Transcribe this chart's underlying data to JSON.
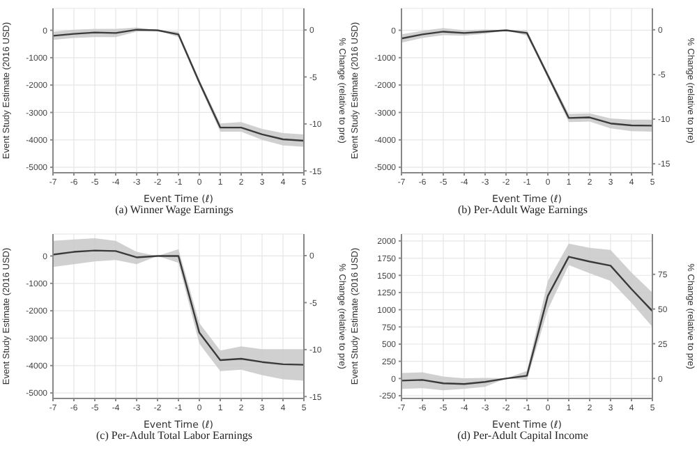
{
  "chart_data": [
    {
      "type": "line",
      "title": "(a) Winner Wage Earnings",
      "xlabel": "Event Time (ℓ)",
      "ylabel": "Event Study Estimate (2016 USD)",
      "y2label": "% Change (relative to pre)",
      "x": [
        -7,
        -6,
        -5,
        -4,
        -3,
        -2,
        -1,
        0,
        1,
        2,
        3,
        4,
        5
      ],
      "xlim": [
        -7,
        5
      ],
      "xticks": [
        -7,
        -6,
        -5,
        -4,
        -3,
        -2,
        -1,
        0,
        1,
        2,
        3,
        4,
        5
      ],
      "ylim": [
        -5200,
        800
      ],
      "yticks": [
        -5000,
        -4000,
        -3000,
        -2000,
        -1000,
        0
      ],
      "y2lim": [
        -15.2,
        2.3
      ],
      "y2ticks": [
        -15,
        -10,
        -5,
        0
      ],
      "grid": true,
      "marker": "none",
      "series": [
        {
          "color": "#3a3a3a",
          "values": [
            -200,
            -130,
            -80,
            -100,
            20,
            0,
            -150,
            -1900,
            -3550,
            -3550,
            -3800,
            -3980,
            -4030
          ],
          "lower": [
            -350,
            -280,
            -250,
            -250,
            -50,
            0,
            -250,
            -2000,
            -3700,
            -3700,
            -4000,
            -4200,
            -4250
          ],
          "upper": [
            -50,
            20,
            50,
            50,
            100,
            0,
            -50,
            -1800,
            -3400,
            -3350,
            -3600,
            -3750,
            -3800
          ]
        }
      ]
    },
    {
      "type": "line",
      "title": "(b) Per-Adult Wage Earnings",
      "xlabel": "Event Time (ℓ)",
      "ylabel": "Event Study Estimate (2016 USD)",
      "y2label": "% Change (relative to pre)",
      "x": [
        -7,
        -6,
        -5,
        -4,
        -3,
        -2,
        -1,
        0,
        1,
        2,
        3,
        4,
        5
      ],
      "xlim": [
        -7,
        5
      ],
      "xticks": [
        -7,
        -6,
        -5,
        -4,
        -3,
        -2,
        -1,
        0,
        1,
        2,
        3,
        4,
        5
      ],
      "ylim": [
        -5200,
        800
      ],
      "yticks": [
        -5000,
        -4000,
        -3000,
        -2000,
        -1000,
        0
      ],
      "y2lim": [
        -16,
        2.4
      ],
      "y2ticks": [
        -15,
        -10,
        -5,
        0
      ],
      "grid": true,
      "marker": "none",
      "series": [
        {
          "color": "#3a3a3a",
          "values": [
            -300,
            -150,
            -50,
            -100,
            -50,
            0,
            -100,
            -1650,
            -3200,
            -3180,
            -3400,
            -3470,
            -3480
          ],
          "lower": [
            -450,
            -280,
            -180,
            -200,
            -130,
            0,
            -200,
            -1750,
            -3350,
            -3330,
            -3580,
            -3680,
            -3700
          ],
          "upper": [
            -150,
            -20,
            80,
            0,
            30,
            0,
            0,
            -1550,
            -3050,
            -3030,
            -3220,
            -3260,
            -3260
          ]
        }
      ]
    },
    {
      "type": "line",
      "title": "(c) Per-Adult Total Labor Earnings",
      "xlabel": "Event Time (ℓ)",
      "ylabel": "Event Study Estimate (2016 USD)",
      "y2label": "% Change (relative to pre)",
      "x": [
        -7,
        -6,
        -5,
        -4,
        -3,
        -2,
        -1,
        0,
        1,
        2,
        3,
        4,
        5
      ],
      "xlim": [
        -7,
        5
      ],
      "xticks": [
        -7,
        -6,
        -5,
        -4,
        -3,
        -2,
        -1,
        0,
        1,
        2,
        3,
        4,
        5
      ],
      "ylim": [
        -5200,
        800
      ],
      "yticks": [
        -5000,
        -4000,
        -3000,
        -2000,
        -1000,
        0
      ],
      "y2lim": [
        -15.2,
        2.3
      ],
      "y2ticks": [
        -15,
        -10,
        -5,
        0
      ],
      "grid": true,
      "marker": "none",
      "series": [
        {
          "color": "#3a3a3a",
          "values": [
            50,
            150,
            200,
            180,
            -50,
            0,
            0,
            -2800,
            -3800,
            -3750,
            -3870,
            -3950,
            -3970
          ],
          "lower": [
            -400,
            -300,
            -200,
            -150,
            -300,
            0,
            -250,
            -3200,
            -4200,
            -4150,
            -4350,
            -4500,
            -4550
          ],
          "upper": [
            550,
            600,
            650,
            550,
            150,
            0,
            250,
            -2450,
            -3450,
            -3300,
            -3400,
            -3400,
            -3400
          ]
        }
      ]
    },
    {
      "type": "line",
      "title": "(d) Per-Adult Capital Income",
      "xlabel": "Event Time (ℓ)",
      "ylabel": "Event Study Estimate (2016 USD)",
      "y2label": "% Change (relative to pre)",
      "x": [
        -7,
        -6,
        -5,
        -4,
        -3,
        -2,
        -1,
        0,
        1,
        2,
        3,
        4,
        5
      ],
      "xlim": [
        -7,
        5
      ],
      "xticks": [
        -7,
        -6,
        -5,
        -4,
        -3,
        -2,
        -1,
        0,
        1,
        2,
        3,
        4,
        5
      ],
      "ylim": [
        -290,
        2100
      ],
      "yticks": [
        -250,
        0,
        250,
        500,
        750,
        1000,
        1250,
        1500,
        1750,
        2000
      ],
      "y2lim": [
        -14.4,
        104
      ],
      "y2ticks": [
        0,
        25,
        50,
        75
      ],
      "grid": true,
      "marker": "none",
      "series": [
        {
          "color": "#3a3a3a",
          "values": [
            -30,
            -20,
            -70,
            -80,
            -50,
            0,
            40,
            1200,
            1770,
            1700,
            1640,
            1300,
            980
          ],
          "lower": [
            -150,
            -140,
            -170,
            -150,
            -120,
            0,
            -20,
            1000,
            1650,
            1530,
            1420,
            1100,
            750
          ],
          "upper": [
            80,
            90,
            30,
            0,
            10,
            0,
            110,
            1420,
            1960,
            1900,
            1870,
            1540,
            1250
          ]
        }
      ]
    }
  ]
}
